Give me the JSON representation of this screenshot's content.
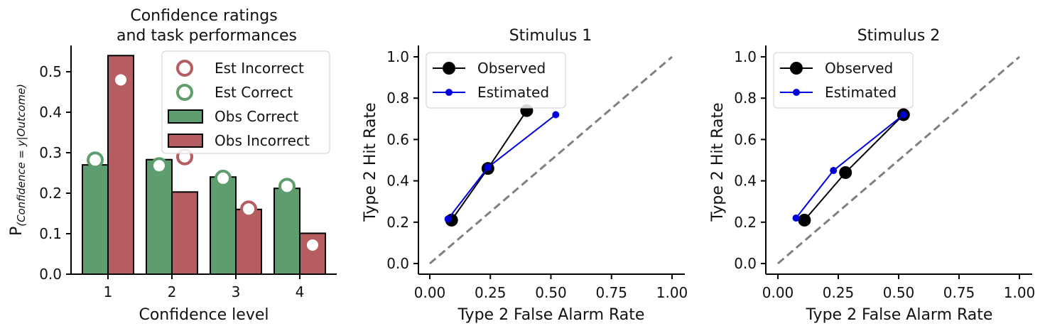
{
  "chart_data": [
    {
      "type": "bar",
      "title_line1": "Confidence ratings",
      "title_line2": "and task performances",
      "xlabel": "Confidence level",
      "ylabel_main": "P",
      "ylabel_sub": "(Confidence = y|Outcome)",
      "categories": [
        "1",
        "2",
        "3",
        "4"
      ],
      "ylim": [
        0,
        0.565
      ],
      "yticks": [
        "0.0",
        "0.1",
        "0.2",
        "0.3",
        "0.4",
        "0.5"
      ],
      "series": [
        {
          "name": "Obs Correct",
          "kind": "bar",
          "color": "#5e9e6e",
          "values": [
            0.27,
            0.283,
            0.24,
            0.212
          ]
        },
        {
          "name": "Obs Incorrect",
          "kind": "bar",
          "color": "#b55d60",
          "values": [
            0.54,
            0.203,
            0.16,
            0.101
          ]
        },
        {
          "name": "Est Correct",
          "kind": "marker",
          "color": "#5e9e6e",
          "values": [
            0.282,
            0.268,
            0.237,
            0.217
          ]
        },
        {
          "name": "Est Incorrect",
          "kind": "marker",
          "color": "#b55d60",
          "values": [
            0.48,
            0.29,
            0.161,
            0.072
          ]
        }
      ],
      "legend": [
        "Est Incorrect",
        "Est Correct",
        "Obs Correct",
        "Obs Incorrect"
      ],
      "legend_position": "upper-right",
      "grid": false
    },
    {
      "type": "line",
      "title": "Stimulus 1",
      "xlabel": "Type 2 False Alarm Rate",
      "ylabel": "Type 2 Hit Rate",
      "xlim": [
        -0.05,
        1.05
      ],
      "ylim": [
        -0.05,
        1.05
      ],
      "xticks": [
        "0.00",
        "0.25",
        "0.50",
        "0.75",
        "1.00"
      ],
      "yticks": [
        "0.0",
        "0.2",
        "0.4",
        "0.6",
        "0.8",
        "1.0"
      ],
      "series": [
        {
          "name": "Observed",
          "color": "#000000",
          "x": [
            0.09,
            0.24,
            0.4
          ],
          "y": [
            0.21,
            0.46,
            0.74
          ]
        },
        {
          "name": "Estimated",
          "color": "#0000dd",
          "x": [
            0.075,
            0.24,
            0.52
          ],
          "y": [
            0.215,
            0.465,
            0.72
          ]
        }
      ],
      "diagonal": true,
      "legend_position": "upper-left",
      "grid": false
    },
    {
      "type": "line",
      "title": "Stimulus 2",
      "xlabel": "Type 2 False Alarm Rate",
      "ylabel": "Type 2 Hit Rate",
      "xlim": [
        -0.05,
        1.05
      ],
      "ylim": [
        -0.05,
        1.05
      ],
      "xticks": [
        "0.00",
        "0.25",
        "0.50",
        "0.75",
        "1.00"
      ],
      "yticks": [
        "0.0",
        "0.2",
        "0.4",
        "0.6",
        "0.8",
        "1.0"
      ],
      "series": [
        {
          "name": "Observed",
          "color": "#000000",
          "x": [
            0.11,
            0.28,
            0.52
          ],
          "y": [
            0.21,
            0.44,
            0.72
          ]
        },
        {
          "name": "Estimated",
          "color": "#0000dd",
          "x": [
            0.075,
            0.23,
            0.52
          ],
          "y": [
            0.22,
            0.45,
            0.72
          ]
        }
      ],
      "diagonal": true,
      "legend_position": "upper-left",
      "grid": false
    }
  ]
}
